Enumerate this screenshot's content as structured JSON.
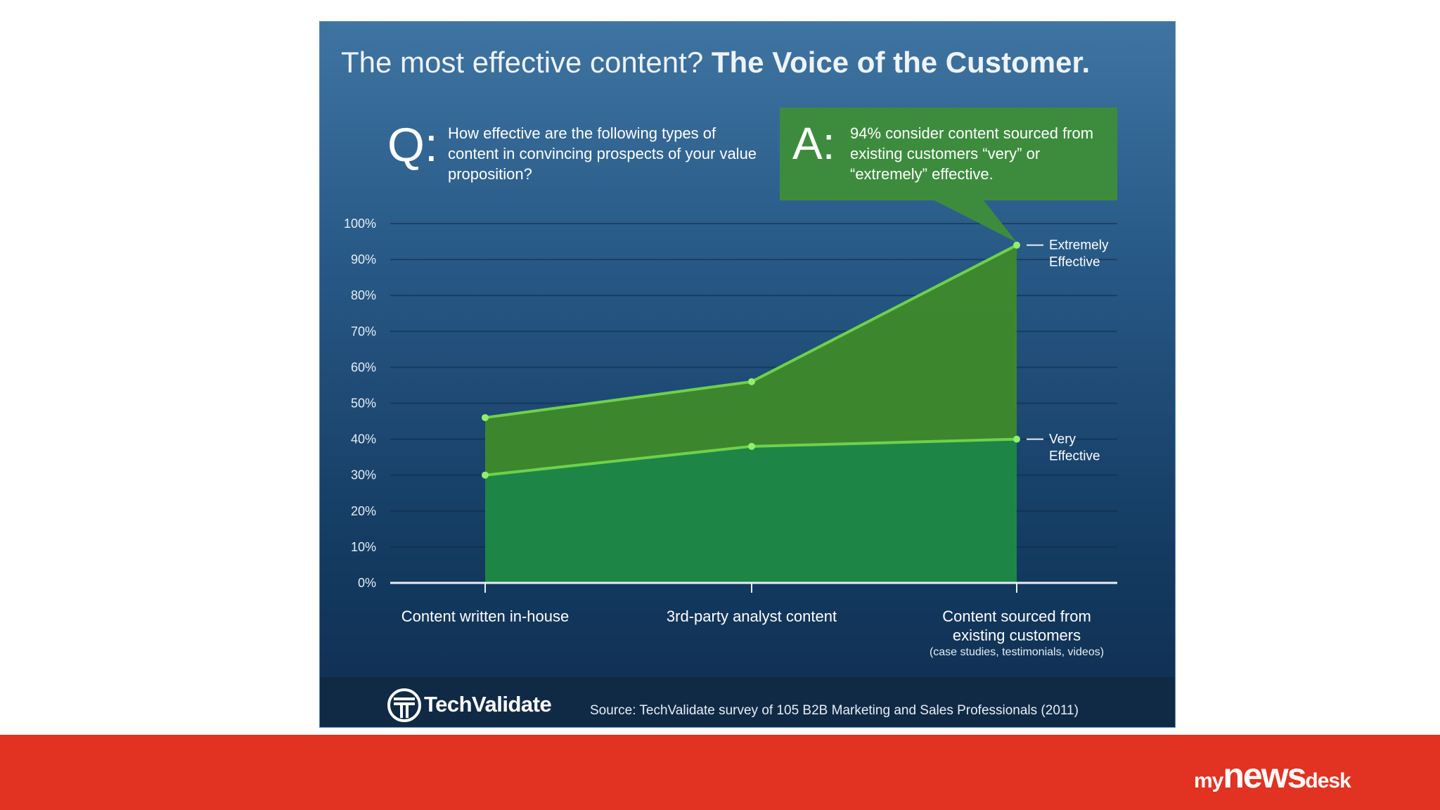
{
  "header": {
    "title_light": "The most effective content?",
    "title_bold": "The Voice of the Customer."
  },
  "question": {
    "letter": "Q:",
    "text": "How effective are the following types of content in convincing prospects of your value proposition?"
  },
  "answer": {
    "letter": "A:",
    "text": "94% consider content sourced from existing customers “very” or “extremely” effective."
  },
  "colors": {
    "bg_top": "#3f74a1",
    "bg_bottom": "#0f2e4f",
    "extremely_fill": "#3e8a2a",
    "very_fill": "#1d8a44",
    "line": "#6fd14a",
    "answer_box": "#3d8c3e",
    "brand_red": "#e23221"
  },
  "chart_data": {
    "type": "area",
    "categories": [
      "Content written in-house",
      "3rd-party analyst content",
      "Content sourced from existing customers"
    ],
    "category_subtitles": [
      "",
      "",
      "(case studies, testimonials, videos)"
    ],
    "series": [
      {
        "name": "Extremely Effective",
        "values": [
          46,
          56,
          94
        ]
      },
      {
        "name": "Very Effective",
        "values": [
          30,
          38,
          40
        ]
      }
    ],
    "series_labels": [
      {
        "line1": "Extremely",
        "line2": "Effective"
      },
      {
        "line1": "Very",
        "line2": "Effective"
      }
    ],
    "ylim": [
      0,
      100
    ],
    "yticks": [
      "0%",
      "10%",
      "20%",
      "30%",
      "40%",
      "50%",
      "60%",
      "70%",
      "80%",
      "90%",
      "100%"
    ],
    "grid": true,
    "title": "The most effective content? The Voice of the Customer."
  },
  "footer": {
    "logo_text": "TechValidate",
    "source": "Source: TechValidate survey of 105 B2B Marketing and Sales Professionals (2011)"
  },
  "brand": {
    "my": "my",
    "news": "news",
    "desk": "desk"
  }
}
